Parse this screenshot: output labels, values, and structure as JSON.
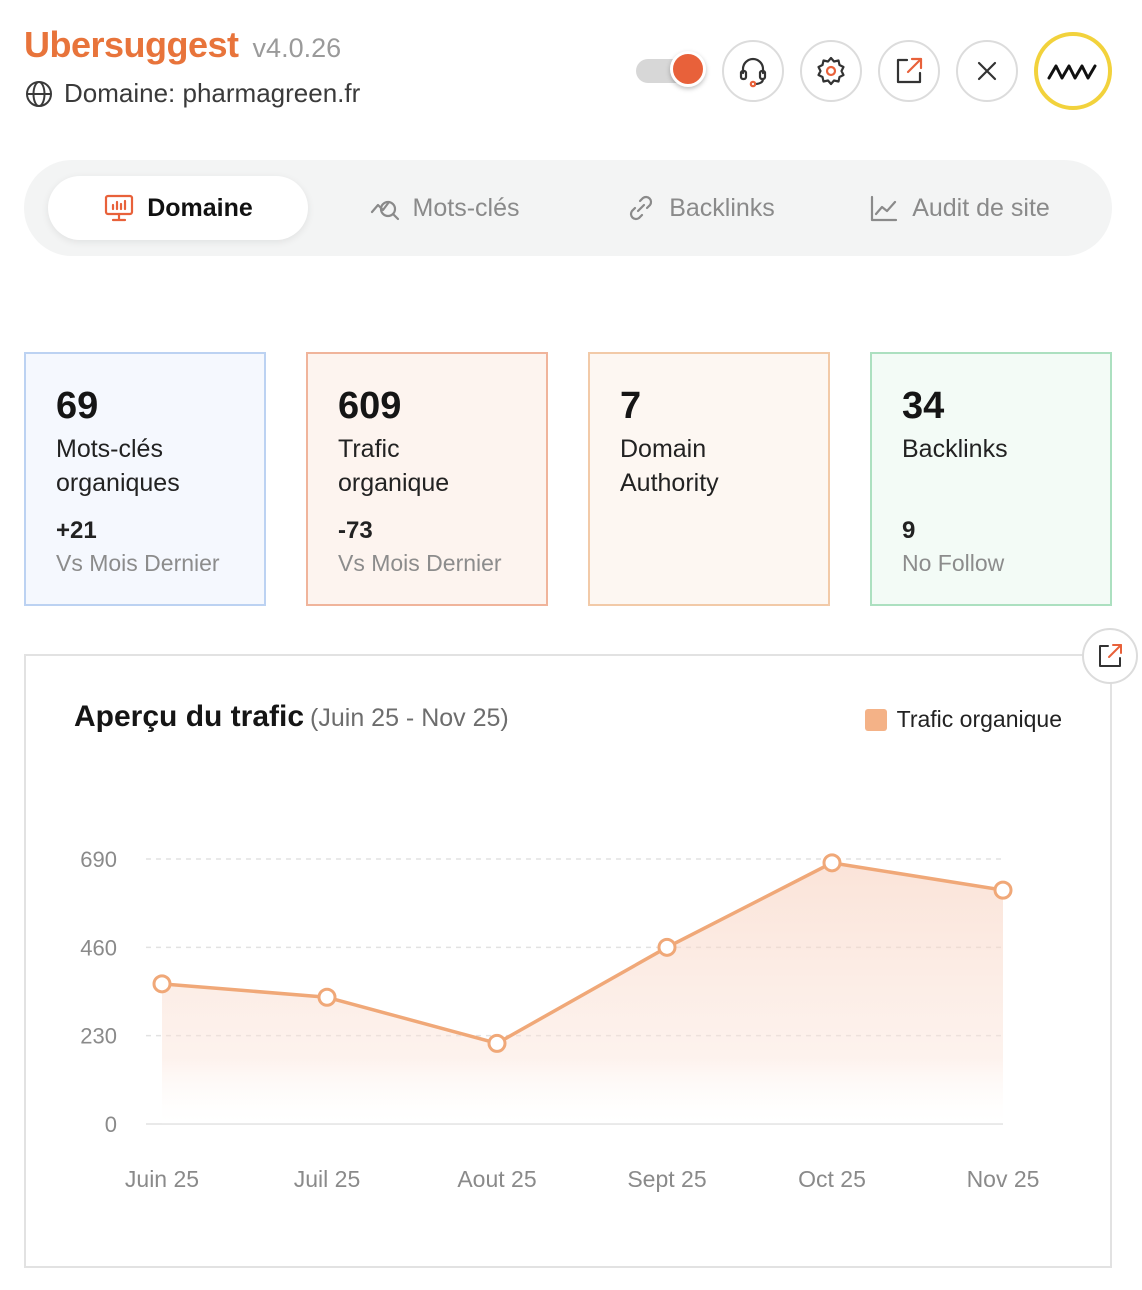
{
  "app": {
    "name": "Ubersuggest",
    "version": "v4.0.26",
    "domain_label": "Domaine: pharmagreen.fr"
  },
  "toolbar": {
    "toggle_on": true,
    "buttons": [
      "headset-icon",
      "gear-icon",
      "external-link-icon",
      "close-icon"
    ],
    "accent": "#e8613a"
  },
  "tabs": [
    {
      "label": "Domaine",
      "icon": "monitor-chart-icon",
      "active": true
    },
    {
      "label": "Mots-clés",
      "icon": "keyword-search-icon",
      "active": false
    },
    {
      "label": "Backlinks",
      "icon": "link-icon",
      "active": false
    },
    {
      "label": "Audit de site",
      "icon": "line-chart-icon",
      "active": false
    }
  ],
  "metrics": [
    {
      "value": "69",
      "label_1": "Mots-clés",
      "label_2": "organiques",
      "delta": "+21",
      "sub": "Vs Mois Dernier"
    },
    {
      "value": "609",
      "label_1": "Trafic",
      "label_2": "organique",
      "delta": "-73",
      "sub": "Vs Mois Dernier"
    },
    {
      "value": "7",
      "label_1": "Domain",
      "label_2": "Authority"
    },
    {
      "value": "34",
      "label_1": "Backlinks",
      "delta": "9",
      "sub": "No Follow"
    }
  ],
  "chart_panel": {
    "title": "Aperçu du trafic",
    "range": "(Juin 25 - Nov 25)",
    "legend": "Trafic organique"
  },
  "chart_data": {
    "type": "area",
    "categories": [
      "Juin 25",
      "Juil 25",
      "Aout 25",
      "Sept 25",
      "Oct 25",
      "Nov 25"
    ],
    "series": [
      {
        "name": "Trafic organique",
        "values": [
          365,
          330,
          210,
          460,
          680,
          609
        ],
        "color": "#f0a878"
      }
    ],
    "yticks": [
      0,
      230,
      460,
      690
    ],
    "ylim": [
      0,
      690
    ],
    "grid": true,
    "legend_position": "top-right"
  }
}
